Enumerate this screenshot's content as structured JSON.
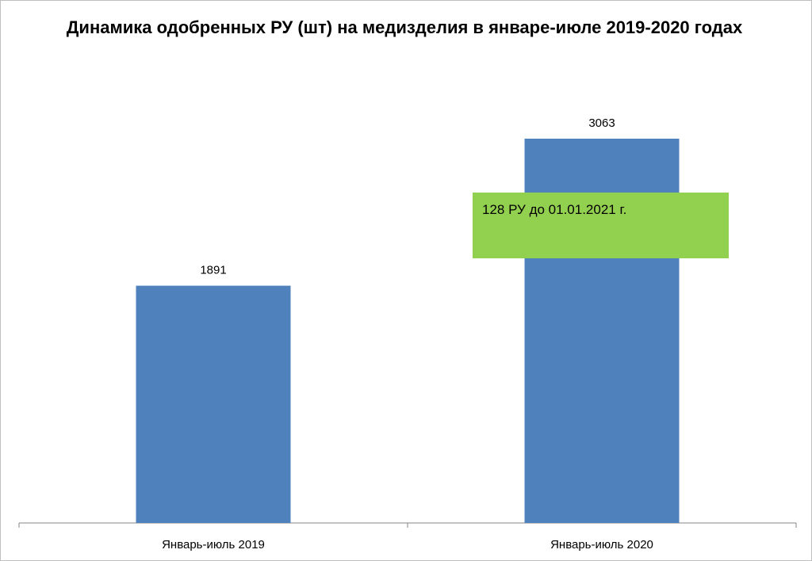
{
  "chart_data": {
    "type": "bar",
    "title": "Динамика одобренных РУ (шт) на медизделия в январе-июле 2019-2020 годах",
    "categories": [
      "Январь-июль 2019",
      "Январь-июль 2020"
    ],
    "values": [
      1891,
      3063
    ],
    "data_labels": [
      "1891",
      "3063"
    ],
    "ylim": [
      0,
      3500
    ],
    "grid": false,
    "legend": "none",
    "bar_color": "#4f81bd",
    "annotation": {
      "text": "128 РУ до 01.01.2021 г.",
      "color": "#92d050"
    }
  }
}
